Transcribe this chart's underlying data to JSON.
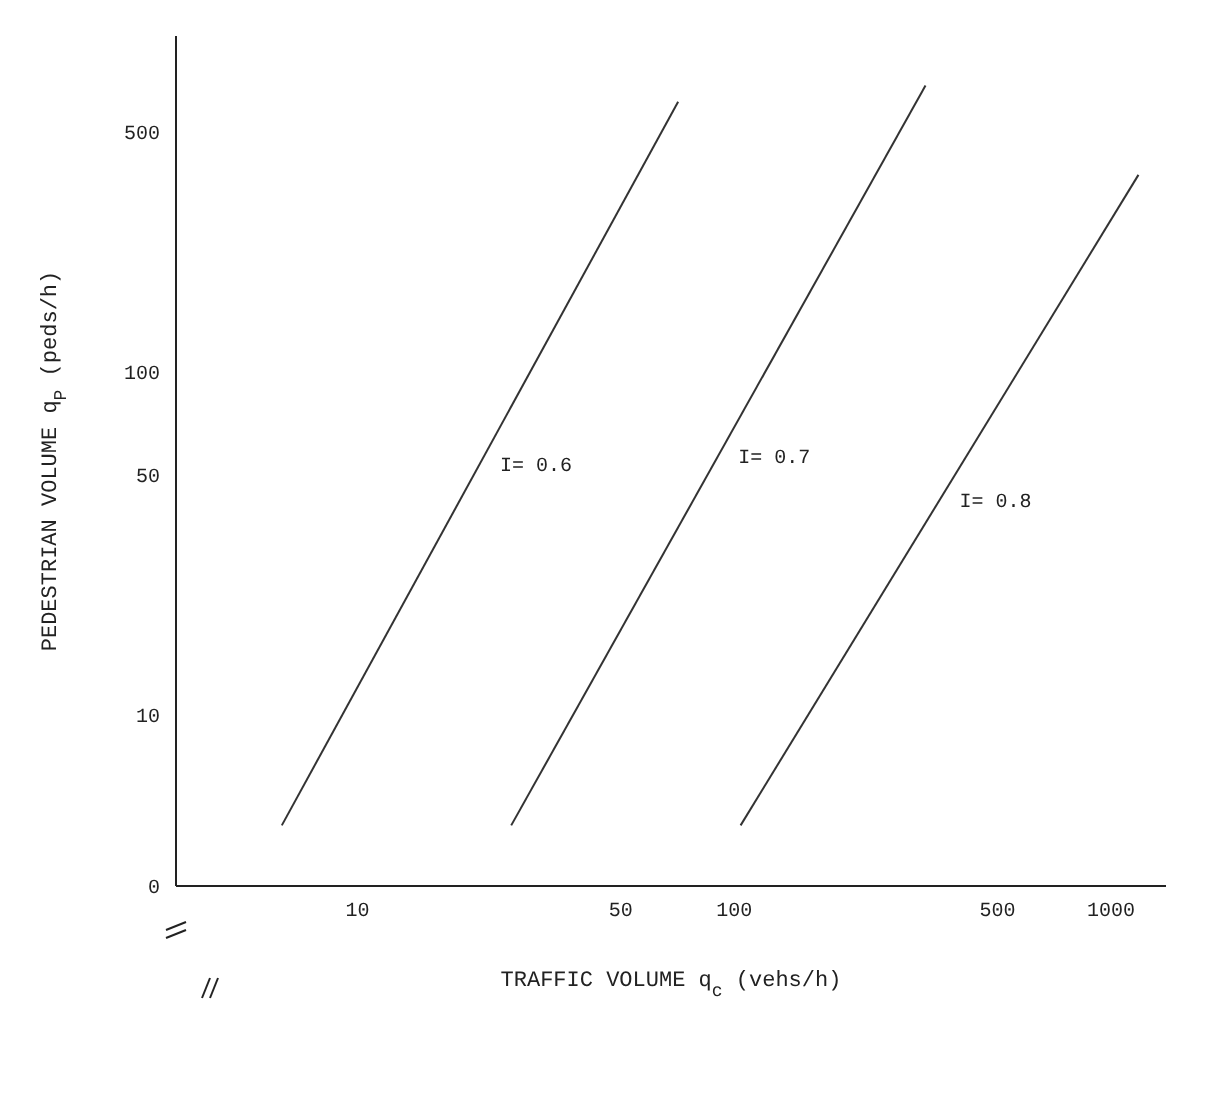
{
  "chart_data": {
    "type": "line",
    "xlabel": "TRAFFIC VOLUME q$_{c}$ (vehs/h)",
    "ylabel": "PEDESTRIAN VOLUME q$_{P}$ (peds/h)",
    "log": "xy",
    "marker": "none",
    "line_style": "solid",
    "xlim": [
      3.3,
      1400
    ],
    "ylim": [
      0,
      950
    ],
    "xticks": [
      10,
      50,
      100,
      500,
      1000
    ],
    "yticks": [
      0,
      10,
      50,
      100,
      500
    ],
    "series": [
      {
        "color": "#333333",
        "x": [
          6.3,
          71
        ],
        "values": [
          4.75,
          611
        ]
      },
      {
        "color": "#333333",
        "x": [
          25.6,
          322
        ],
        "values": [
          4.75,
          681
        ]
      },
      {
        "color": "#333333",
        "x": [
          104,
          1183
        ],
        "values": [
          4.75,
          374
        ]
      }
    ],
    "annotations": [
      "I= 0.6",
      "I= 0.7",
      "I= 0.8"
    ]
  }
}
